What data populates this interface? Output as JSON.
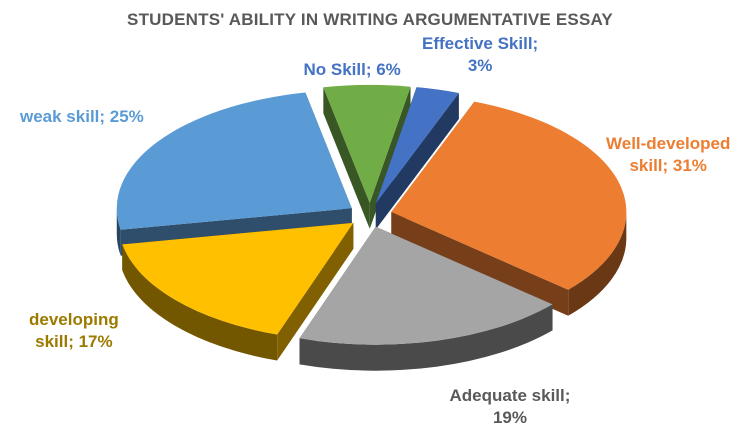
{
  "chart_data": {
    "type": "pie",
    "title": "STUDENTS' ABILITY IN WRITING ARGUMENTATIVE ESSAY",
    "slices": [
      {
        "label": "Effective Skill",
        "value": 3,
        "display": [
          "Effective Skill;",
          "3%"
        ],
        "color": "#4472C4",
        "label_color": "#4472C4"
      },
      {
        "label": "Well-developed skill",
        "value": 31,
        "display": [
          "Well-developed",
          "skill; 31%"
        ],
        "color": "#ED7D31",
        "label_color": "#ED7D31"
      },
      {
        "label": "Adequate skill",
        "value": 19,
        "display": [
          "Adequate skill;",
          "19%"
        ],
        "color": "#A5A5A5",
        "label_color": "#595959"
      },
      {
        "label": "developing skill",
        "value": 17,
        "display": [
          "developing",
          "skill; 17%"
        ],
        "color": "#FFC000",
        "label_color": "#9C7A00"
      },
      {
        "label": "weak skill",
        "value": 25,
        "display": [
          "weak skill; 25%"
        ],
        "color": "#5B9BD5",
        "label_color": "#5B9BD5"
      },
      {
        "label": "No Skill",
        "value": 6,
        "display": [
          "No Skill; 6%"
        ],
        "color": "#70AD47",
        "label_color": "#4472C4"
      }
    ]
  }
}
